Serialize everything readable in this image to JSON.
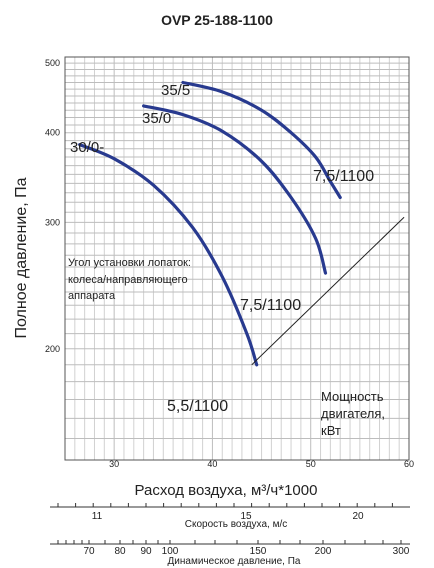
{
  "title": "OVP 25-188-1100",
  "chart_data": {
    "type": "line",
    "title": "OVP 25-188-1100",
    "xlabel": "Расход воздуха, м³/ч*1000",
    "ylabel": "Полное давление, Па",
    "xlim": [
      25,
      60
    ],
    "ylim": [
      140,
      510
    ],
    "y_scale": "log",
    "grid": true,
    "x_ticks": [
      "30",
      "40",
      "50",
      "60"
    ],
    "y_ticks": [
      "200",
      "300",
      "400",
      "500"
    ],
    "series": [
      {
        "name": "30/0-",
        "motor": "5,5/1100",
        "points": [
          [
            26.5,
            385
          ],
          [
            30,
            368
          ],
          [
            34,
            338
          ],
          [
            38,
            295
          ],
          [
            41,
            252
          ],
          [
            43.5,
            210
          ],
          [
            44.5,
            190
          ]
        ]
      },
      {
        "name": "35/0",
        "motor": "7,5/1100",
        "points": [
          [
            33,
            436
          ],
          [
            37,
            424
          ],
          [
            41,
            402
          ],
          [
            45,
            365
          ],
          [
            48,
            325
          ],
          [
            50.5,
            285
          ],
          [
            51.5,
            255
          ]
        ]
      },
      {
        "name": "35/5",
        "motor": "7,5/1100",
        "points": [
          [
            37,
            470
          ],
          [
            41,
            456
          ],
          [
            45,
            430
          ],
          [
            48,
            400
          ],
          [
            50.5,
            370
          ],
          [
            52,
            342
          ],
          [
            53,
            325
          ]
        ]
      }
    ],
    "annotations": {
      "blade_angle": "Угол установки лопаток:",
      "blade_angle_2": "колеса/направляющего",
      "blade_angle_3": "аппарата",
      "power_1": "Мощность",
      "power_2": "двигателя,",
      "power_3": "кВт"
    },
    "power_limit_line": [
      [
        44,
        190
      ],
      [
        59.5,
        305
      ]
    ],
    "secondary_axes": {
      "velocity": {
        "label": "Скорость воздуха, м/с",
        "ticks": [
          "11",
          "15",
          "20"
        ]
      },
      "dynamic_pressure": {
        "label": "Динамическое давление, Па",
        "ticks": [
          "70",
          "80",
          "90",
          "100",
          "150",
          "200",
          "300"
        ]
      }
    }
  }
}
